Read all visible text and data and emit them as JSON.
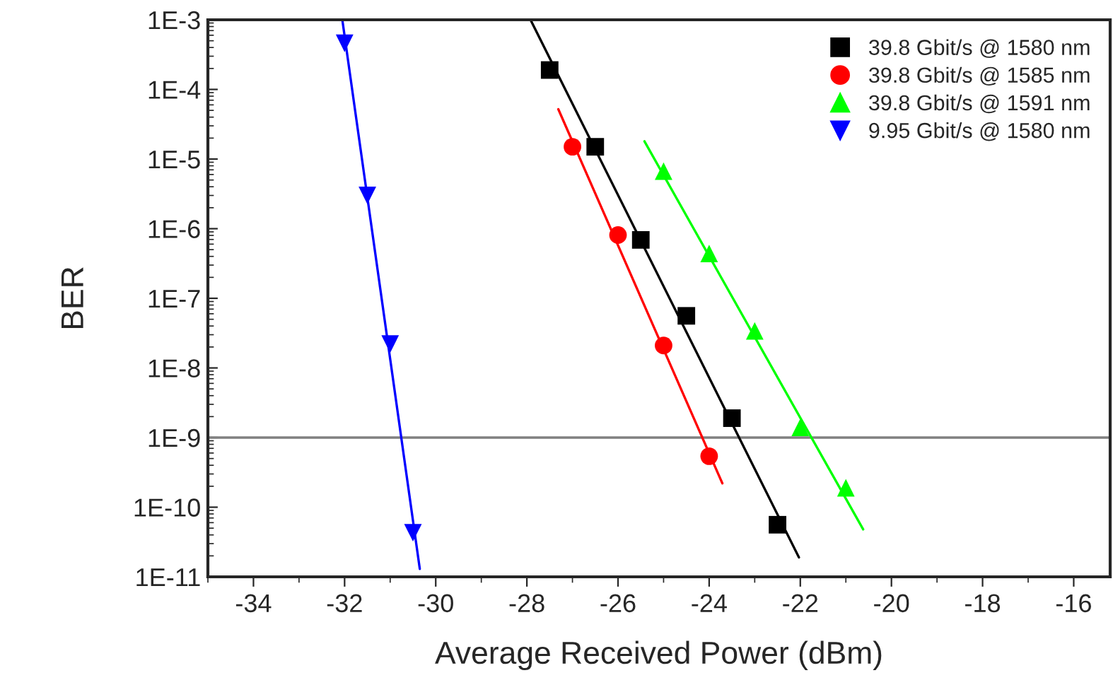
{
  "chart_data": {
    "type": "scatter",
    "xlabel": "Average Received Power (dBm)",
    "ylabel": "BER",
    "log": "y",
    "xlim": [
      -35,
      -15.2
    ],
    "xticks": [
      -34,
      -32,
      -30,
      -28,
      -26,
      -24,
      -22,
      -20,
      -18,
      -16
    ],
    "ylim": [
      1e-11,
      0.001
    ],
    "yticks": [
      {
        "value": 1e-11,
        "label": "1E-11"
      },
      {
        "value": 1e-10,
        "label": "1E-10"
      },
      {
        "value": 1e-09,
        "label": "1E-9"
      },
      {
        "value": 1e-08,
        "label": "1E-8"
      },
      {
        "value": 1e-07,
        "label": "1E-7"
      },
      {
        "value": 1e-06,
        "label": "1E-6"
      },
      {
        "value": 1e-05,
        "label": "1E-5"
      },
      {
        "value": 0.0001,
        "label": "1E-4"
      },
      {
        "value": 0.001,
        "label": "1E-3"
      }
    ],
    "grid": false,
    "legend": "top right",
    "ref_lines": [
      {
        "axis": "y",
        "value": 1e-09,
        "color": "#808080"
      }
    ],
    "series": [
      {
        "name": "39.8 Gbit/s @ 1580 nm",
        "color": "#000000",
        "marker": "square",
        "x": [
          -27.5,
          -26.5,
          -25.5,
          -24.5,
          -23.5,
          -22.5
        ],
        "values": [
          0.00019,
          1.5e-05,
          6.9e-07,
          5.6e-08,
          1.9e-09,
          5.6e-11
        ]
      },
      {
        "name": "39.8 Gbit/s @ 1585 nm",
        "color": "#ff0000",
        "marker": "circle",
        "x": [
          -27,
          -26,
          -25,
          -24
        ],
        "values": [
          1.5e-05,
          8.1e-07,
          2.1e-08,
          5.4e-10
        ]
      },
      {
        "name": "39.8 Gbit/s @ 1591 nm",
        "color": "#00ff00",
        "marker": "triangle",
        "x": [
          -25,
          -24,
          -23,
          -22,
          -21
        ],
        "values": [
          6.7e-06,
          4.4e-07,
          3.4e-08,
          1.4e-09,
          1.9e-10
        ]
      },
      {
        "name": "9.95 Gbit/s @ 1580 nm",
        "color": "#0000ff",
        "marker": "triangle_down",
        "x": [
          -32,
          -31.5,
          -31,
          -30.5
        ],
        "values": [
          0.00046,
          3e-06,
          2.2e-08,
          4.3e-11
        ]
      },
      {
        "type": "line",
        "color": "#000000",
        "x": [
          -27.92,
          -22.03
        ],
        "values": [
          0.001,
          1.9e-11
        ]
      },
      {
        "type": "line",
        "color": "#ff0000",
        "x": [
          -27.31,
          -23.71
        ],
        "values": [
          5.2e-05,
          2.2e-10
        ]
      },
      {
        "type": "line",
        "color": "#00ff00",
        "x": [
          -25.42,
          -20.62
        ],
        "values": [
          1.8e-05,
          4.8e-11
        ]
      },
      {
        "type": "line",
        "color": "#0000ff",
        "x": [
          -32.05,
          -30.35
        ],
        "values": [
          0.001,
          1.3e-11
        ]
      }
    ]
  }
}
